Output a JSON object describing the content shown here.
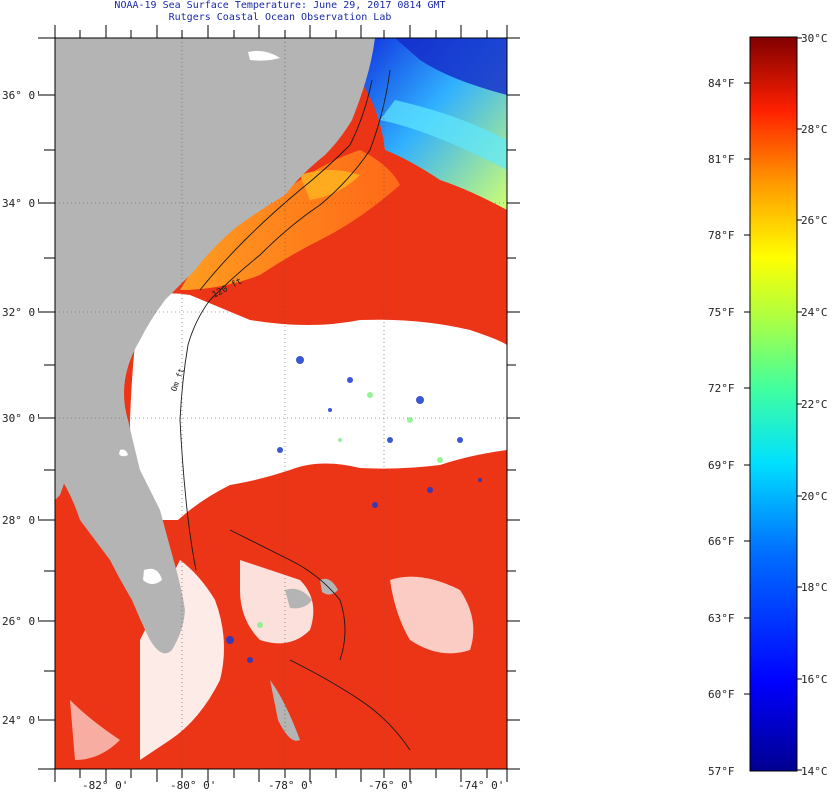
{
  "title": {
    "line1": "NOAA-19 Sea Surface Temperature:  June 29, 2017 0814 GMT",
    "line2": "Rutgers Coastal Ocean Observation Lab"
  },
  "map": {
    "lat_labels": [
      "36° 0'",
      "34° 0'",
      "32° 0'",
      "30° 0'",
      "28° 0'",
      "26° 0'",
      "24° 0'"
    ],
    "lon_labels": [
      "-82° 0'",
      "-80° 0'",
      "-78° 0'",
      "-76° 0'",
      "-74° 0'"
    ],
    "isobath_labels": [
      "120 ft",
      "Om ft"
    ],
    "colors": {
      "land": "#b4b4b4",
      "cloud": "#ffffff",
      "warm_sst": "#f03a10",
      "cool_sst": "#1a3ad0"
    }
  },
  "colorbar": {
    "celsius_labels": [
      "30°C",
      "28°C",
      "26°C",
      "24°C",
      "22°C",
      "20°C",
      "18°C",
      "16°C",
      "14°C"
    ],
    "fahrenheit_labels": [
      "84°F",
      "81°F",
      "78°F",
      "75°F",
      "72°F",
      "69°F",
      "66°F",
      "63°F",
      "60°F",
      "57°F"
    ],
    "min_c": 14,
    "max_c": 30,
    "min_f": 57,
    "max_f": 86
  }
}
